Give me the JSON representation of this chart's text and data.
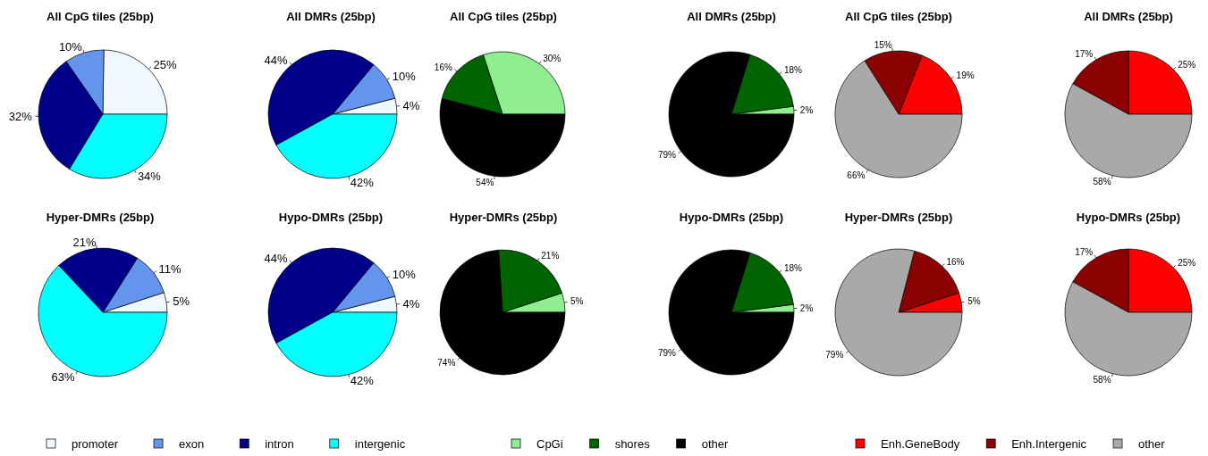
{
  "chart_data": [
    {
      "type": "pie",
      "title": "All CpG tiles (25bp)",
      "categories": [
        null,
        null,
        null,
        null
      ],
      "values": [
        25,
        10,
        32,
        34
      ],
      "value_labels": [
        "25%",
        "10%",
        "32%",
        "34%"
      ],
      "colors": [
        "#f0f8ff",
        "#6495ed",
        "#00008b",
        "#00ffff"
      ]
    },
    {
      "type": "pie",
      "title": "All DMRs (25bp)",
      "categories": [
        null,
        null,
        null,
        null
      ],
      "values": [
        4,
        10,
        44,
        42
      ],
      "value_labels": [
        "4%",
        "10%",
        "44%",
        "42%"
      ],
      "colors": [
        "#f0f8ff",
        "#6495ed",
        "#00008b",
        "#00ffff"
      ]
    },
    {
      "type": "pie",
      "title": "All CpG tiles (25bp)",
      "categories": [
        null,
        null,
        null
      ],
      "values": [
        30,
        16,
        54
      ],
      "value_labels": [
        "30%",
        "16%",
        "54%"
      ],
      "colors": [
        "#90ee90",
        "#006400",
        "#000000"
      ]
    },
    {
      "type": "pie",
      "title": "All DMRs (25bp)",
      "categories": [
        null,
        null,
        null
      ],
      "values": [
        2,
        18,
        79
      ],
      "value_labels": [
        "2%",
        "18%",
        "79%"
      ],
      "colors": [
        "#90ee90",
        "#006400",
        "#000000"
      ]
    },
    {
      "type": "pie",
      "title": "All CpG tiles (25bp)",
      "categories": [
        null,
        null,
        null
      ],
      "values": [
        19,
        15,
        66
      ],
      "value_labels": [
        "19%",
        "15%",
        "66%"
      ],
      "colors": [
        "#ff0000",
        "#8b0000",
        "#a9a9a9"
      ]
    },
    {
      "type": "pie",
      "title": "All DMRs (25bp)",
      "categories": [
        null,
        null,
        null
      ],
      "values": [
        25,
        17,
        58
      ],
      "value_labels": [
        "25%",
        "17%",
        "58%"
      ],
      "colors": [
        "#ff0000",
        "#8b0000",
        "#a9a9a9"
      ]
    },
    {
      "type": "pie",
      "title": "Hyper-DMRs (25bp)",
      "categories": [
        "promoter",
        "exon",
        "intron",
        "intergenic"
      ],
      "values": [
        5,
        11,
        21,
        63
      ],
      "value_labels": [
        "5%",
        "11%",
        "21%",
        "63%"
      ],
      "colors": [
        "#f0f8ff",
        "#6495ed",
        "#00008b",
        "#00ffff"
      ],
      "legend": "bottom"
    },
    {
      "type": "pie",
      "title": "Hypo-DMRs (25bp)",
      "categories": [
        null,
        null,
        null,
        null
      ],
      "values": [
        4,
        10,
        44,
        42
      ],
      "value_labels": [
        "4%",
        "10%",
        "44%",
        "42%"
      ],
      "colors": [
        "#f0f8ff",
        "#6495ed",
        "#00008b",
        "#00ffff"
      ]
    },
    {
      "type": "pie",
      "title": "Hyper-DMRs (25bp)",
      "categories": [
        "CpGi",
        "shores",
        "other"
      ],
      "values": [
        5,
        21,
        74
      ],
      "value_labels": [
        "5%",
        "21%",
        "74%"
      ],
      "colors": [
        "#90ee90",
        "#006400",
        "#000000"
      ],
      "legend": "bottom"
    },
    {
      "type": "pie",
      "title": "Hypo-DMRs (25bp)",
      "categories": [
        null,
        null,
        null
      ],
      "values": [
        2,
        18,
        79
      ],
      "value_labels": [
        "2%",
        "18%",
        "79%"
      ],
      "colors": [
        "#90ee90",
        "#006400",
        "#000000"
      ]
    },
    {
      "type": "pie",
      "title": "Hyper-DMRs (25bp)",
      "categories": [
        "Enh.GeneBody",
        "Enh.Intergenic",
        "other"
      ],
      "values": [
        5,
        16,
        79
      ],
      "value_labels": [
        "5%",
        "16%",
        "79%"
      ],
      "colors": [
        "#ff0000",
        "#8b0000",
        "#a9a9a9"
      ],
      "legend": "bottom"
    },
    {
      "type": "pie",
      "title": "Hypo-DMRs (25bp)",
      "categories": [
        null,
        null,
        null
      ],
      "values": [
        25,
        17,
        58
      ],
      "value_labels": [
        "25%",
        "17%",
        "58%"
      ],
      "colors": [
        "#ff0000",
        "#8b0000",
        "#a9a9a9"
      ]
    }
  ]
}
